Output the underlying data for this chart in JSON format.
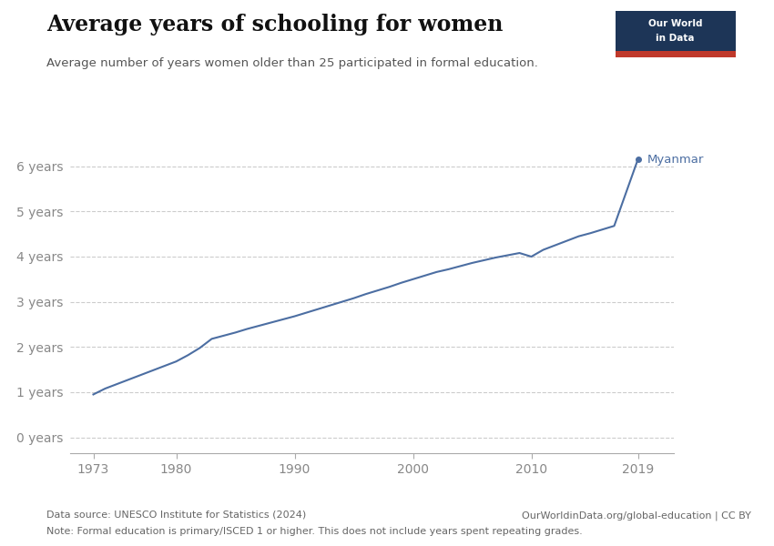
{
  "title": "Average years of schooling for women",
  "subtitle": "Average number of years women older than 25 participated in formal education.",
  "footnote_source": "Data source: UNESCO Institute for Statistics (2024)",
  "footnote_right": "OurWorldinData.org/global-education | CC BY",
  "footnote_note": "Note: Formal education is primary/ISCED 1 or higher. This does not include years spent repeating grades.",
  "line_color": "#4c6ea2",
  "years": [
    1973,
    1974,
    1975,
    1976,
    1977,
    1978,
    1979,
    1980,
    1981,
    1982,
    1983,
    1984,
    1985,
    1986,
    1987,
    1988,
    1989,
    1990,
    1991,
    1992,
    1993,
    1994,
    1995,
    1996,
    1997,
    1998,
    1999,
    2000,
    2001,
    2002,
    2003,
    2004,
    2005,
    2006,
    2007,
    2008,
    2009,
    2010,
    2011,
    2012,
    2013,
    2014,
    2015,
    2016,
    2017,
    2019
  ],
  "values": [
    0.95,
    1.08,
    1.18,
    1.28,
    1.38,
    1.48,
    1.58,
    1.68,
    1.82,
    1.98,
    2.18,
    2.25,
    2.32,
    2.4,
    2.47,
    2.54,
    2.61,
    2.68,
    2.76,
    2.84,
    2.92,
    3.0,
    3.08,
    3.17,
    3.25,
    3.33,
    3.42,
    3.5,
    3.58,
    3.66,
    3.72,
    3.79,
    3.86,
    3.92,
    3.98,
    4.03,
    4.08,
    4.0,
    4.15,
    4.25,
    4.35,
    4.45,
    4.52,
    4.6,
    4.68,
    6.15
  ],
  "label_country": "Myanmar",
  "ytick_labels": [
    "0 years",
    "1 years",
    "2 years",
    "3 years",
    "4 years",
    "5 years",
    "6 years"
  ],
  "ytick_values": [
    0,
    1,
    2,
    3,
    4,
    5,
    6
  ],
  "xtick_values": [
    1973,
    1980,
    1990,
    2000,
    2010,
    2019
  ],
  "ylim": [
    -0.35,
    6.9
  ],
  "xlim": [
    1971,
    2022
  ],
  "grid_color": "#cccccc",
  "bg_color": "#ffffff",
  "logo_bg_color": "#1d3557",
  "logo_red_color": "#c0392b",
  "text_color": "#333333",
  "subtitle_color": "#555555",
  "footer_color": "#666666",
  "tick_color": "#888888"
}
